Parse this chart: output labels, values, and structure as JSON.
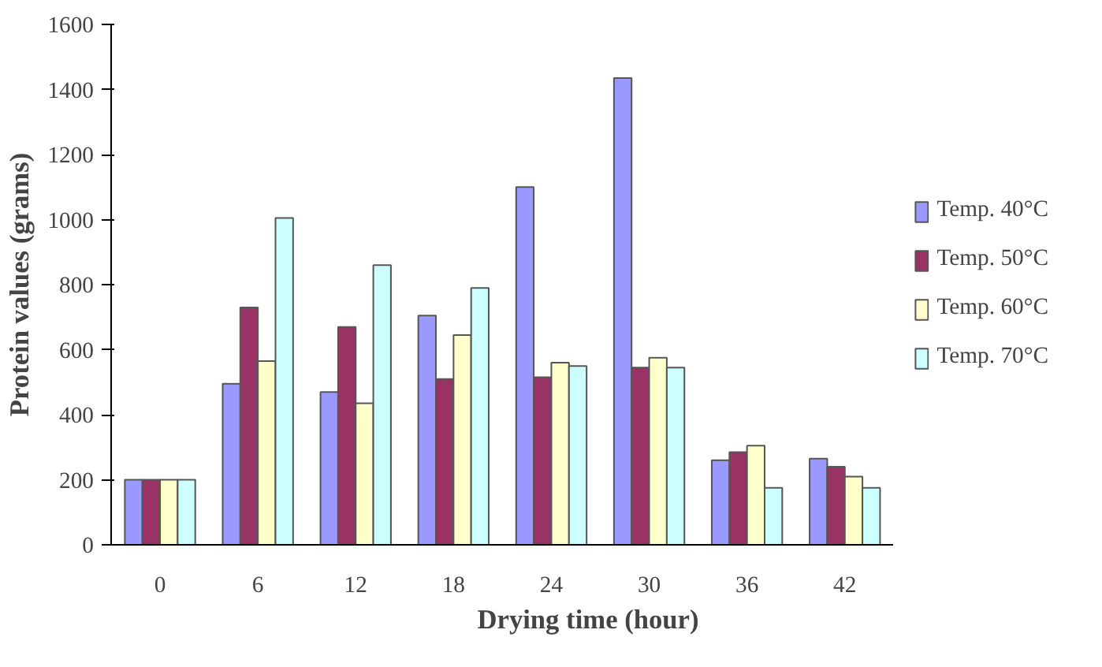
{
  "chart_data": {
    "type": "bar",
    "xlabel": "Drying time (hour)",
    "ylabel": "Protein values (grams)",
    "categories": [
      "0",
      "6",
      "12",
      "18",
      "24",
      "30",
      "36",
      "42"
    ],
    "series": [
      {
        "name": "Temp. 40°C",
        "color": "#9999ff",
        "values": [
          200,
          495,
          470,
          705,
          1100,
          1435,
          260,
          265
        ]
      },
      {
        "name": "Temp. 50°C",
        "color": "#993366",
        "values": [
          200,
          730,
          670,
          510,
          515,
          545,
          285,
          240
        ]
      },
      {
        "name": "Temp. 60°C",
        "color": "#ffffcc",
        "values": [
          200,
          565,
          435,
          645,
          560,
          575,
          305,
          210
        ]
      },
      {
        "name": "Temp. 70°C",
        "color": "#ccffff",
        "values": [
          200,
          1005,
          860,
          790,
          550,
          545,
          175,
          175
        ]
      }
    ],
    "ylim": [
      0,
      1600
    ],
    "yticks": [
      0,
      200,
      400,
      600,
      800,
      1000,
      1200,
      1400,
      1600
    ],
    "grid": false,
    "legend": "right"
  }
}
